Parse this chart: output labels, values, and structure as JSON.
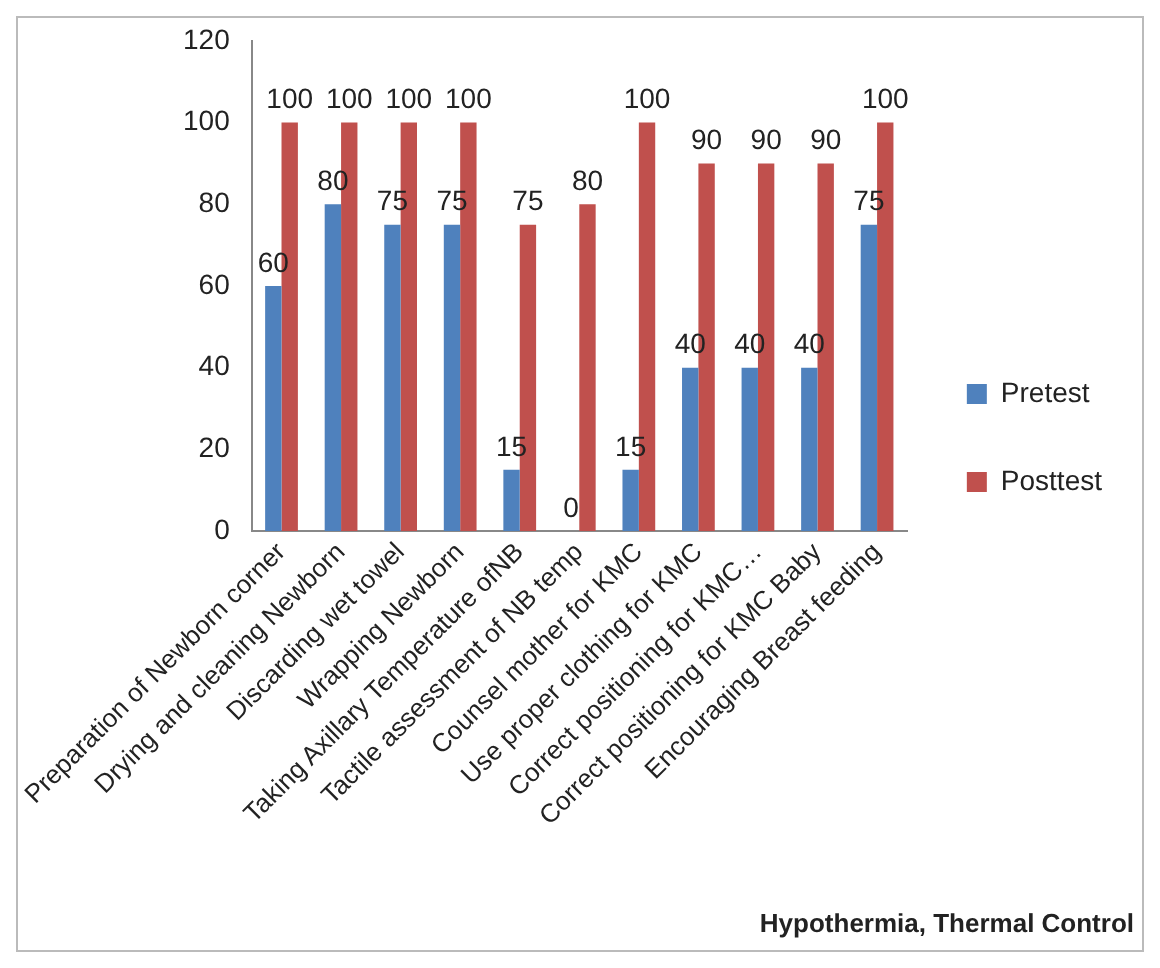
{
  "chart_data": {
    "type": "bar",
    "categories": [
      "Preparation of Newborn corner",
      "Drying and cleaning Newborn",
      "Discarding wet towel",
      "Wrapping Newborn",
      "Taking Axillary Temperature ofNB",
      "Tactile assessment of NB temp",
      "Counsel mother for KMC",
      "Use proper clothing for KMC",
      "Correct positioning for KMC…",
      "Correct positioning for KMC Baby",
      "Encouraging Breast feeding"
    ],
    "series": [
      {
        "name": "Pretest",
        "color": "#4f81bd",
        "values": [
          60,
          80,
          75,
          75,
          15,
          0,
          15,
          40,
          40,
          40,
          75
        ]
      },
      {
        "name": "Posttest",
        "color": "#c0504d",
        "values": [
          100,
          100,
          100,
          100,
          75,
          80,
          100,
          90,
          90,
          90,
          100
        ]
      }
    ],
    "ylim": [
      0,
      120
    ],
    "yticks": [
      0,
      20,
      40,
      60,
      80,
      100,
      120
    ],
    "grid": false,
    "legend": "right",
    "data_labels": true,
    "annotations": [
      "Hypothermia, Thermal Control"
    ]
  }
}
